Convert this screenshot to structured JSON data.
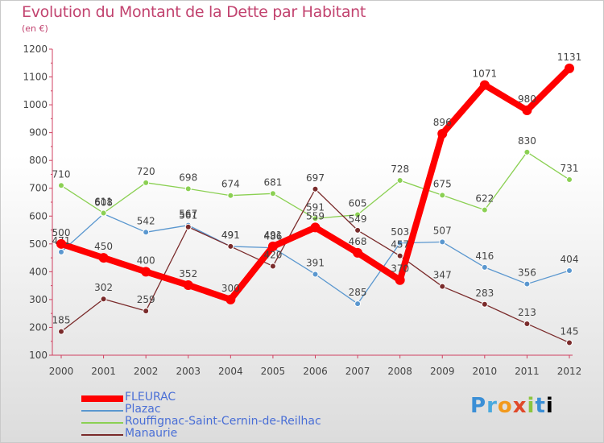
{
  "title": "Evolution du Montant de la Dette par Habitant",
  "subtitle": "(en €)",
  "logo": "Proxiti",
  "chart_data": {
    "type": "line",
    "x": [
      "2000",
      "2001",
      "2002",
      "2003",
      "2004",
      "2005",
      "2006",
      "2007",
      "2008",
      "2009",
      "2010",
      "2011",
      "2012"
    ],
    "ylim": [
      100,
      1200
    ],
    "yticks": [
      100,
      200,
      300,
      400,
      500,
      600,
      700,
      800,
      900,
      1000,
      1100,
      1200
    ],
    "grid": false,
    "legend_position": "bottom-left",
    "series": [
      {
        "name": "FLEURAC",
        "color": "#ff0000",
        "values": [
          500,
          450,
          400,
          352,
          300,
          491,
          559,
          468,
          370,
          896,
          1071,
          980,
          1131
        ]
      },
      {
        "name": "Plazac",
        "color": "#5a97cf",
        "values": [
          471,
          608,
          542,
          567,
          491,
          486,
          391,
          285,
          503,
          507,
          416,
          356,
          404
        ]
      },
      {
        "name": "Rouffignac-Saint-Cernin-de-Reilhac",
        "color": "#8bd053",
        "values": [
          710,
          611,
          720,
          698,
          674,
          681,
          591,
          605,
          728,
          675,
          622,
          830,
          731
        ]
      },
      {
        "name": "Manaurie",
        "color": "#7a2b2b",
        "values": [
          185,
          302,
          259,
          561,
          491,
          420,
          697,
          549,
          457,
          347,
          283,
          213,
          145
        ]
      }
    ]
  }
}
